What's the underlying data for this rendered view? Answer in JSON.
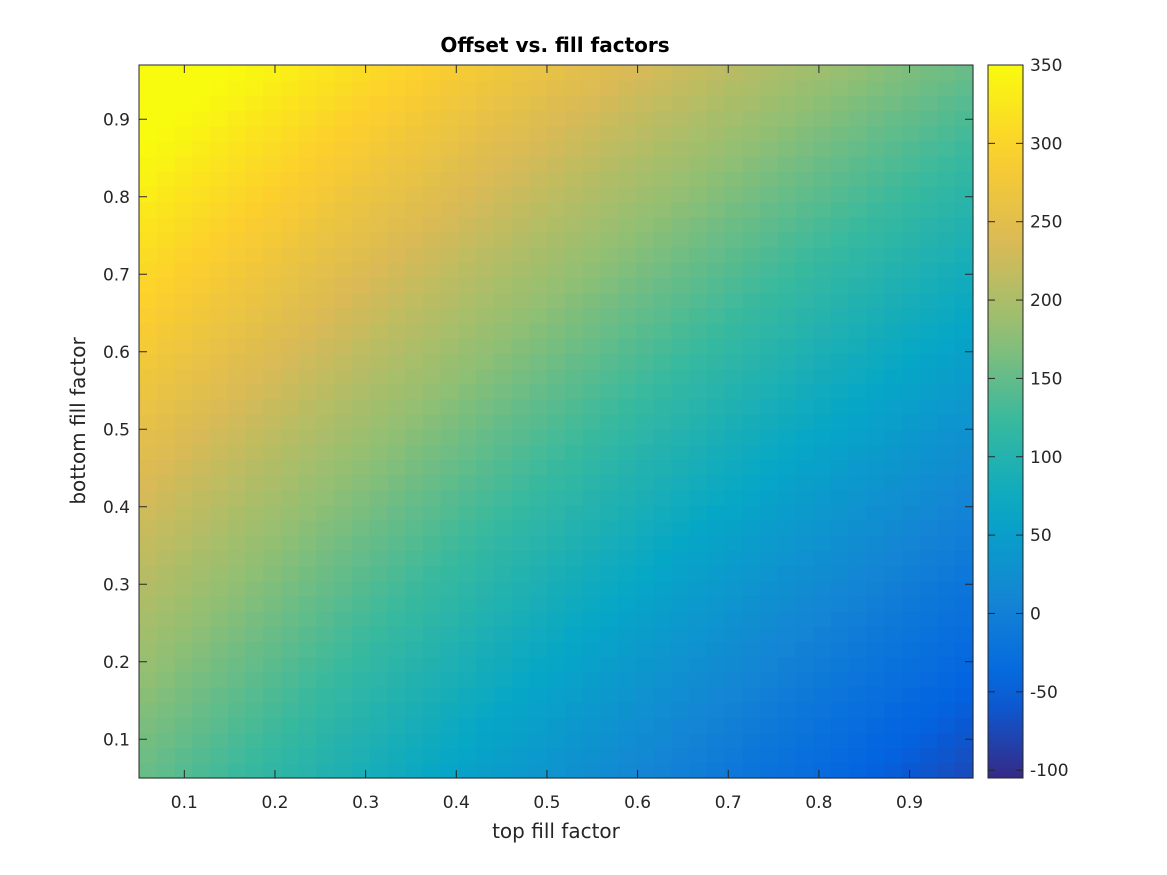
{
  "chart_data": {
    "type": "heatmap",
    "title": "Offset vs. fill factors",
    "xlabel": "top fill factor",
    "ylabel": "bottom fill factor",
    "xlim": [
      0.05,
      0.97
    ],
    "ylim": [
      0.05,
      0.97
    ],
    "x_ticks": [
      0.1,
      0.2,
      0.3,
      0.4,
      0.5,
      0.6,
      0.7,
      0.8,
      0.9
    ],
    "x_tick_labels": [
      "0.1",
      "0.2",
      "0.3",
      "0.4",
      "0.5",
      "0.6",
      "0.7",
      "0.8",
      "0.9"
    ],
    "y_ticks": [
      0.1,
      0.2,
      0.3,
      0.4,
      0.5,
      0.6,
      0.7,
      0.8,
      0.9
    ],
    "y_tick_labels": [
      "0.1",
      "0.2",
      "0.3",
      "0.4",
      "0.5",
      "0.6",
      "0.7",
      "0.8",
      "0.9"
    ],
    "grid_size": [
      47,
      47
    ],
    "colormap": "parula",
    "clim": [
      -105,
      350
    ],
    "colorbar_ticks": [
      350,
      300,
      250,
      200,
      150,
      100,
      50,
      0,
      -50,
      -100
    ],
    "colorbar_tick_labels": [
      "350",
      "300",
      "250",
      "200",
      "150",
      "100",
      "50",
      "0",
      "-50",
      "-100"
    ],
    "grid": false,
    "corner_values": {
      "top_low_bottom_high": 350,
      "top_high_bottom_low": -105,
      "top_low_bottom_low": 145,
      "top_high_bottom_high": 145
    },
    "colormap_stops": [
      "#352a87",
      "#0363e1",
      "#1485d4",
      "#06a7c6",
      "#38b99e",
      "#92bf73",
      "#d9ba56",
      "#fcce2e",
      "#f9fb0e"
    ]
  }
}
